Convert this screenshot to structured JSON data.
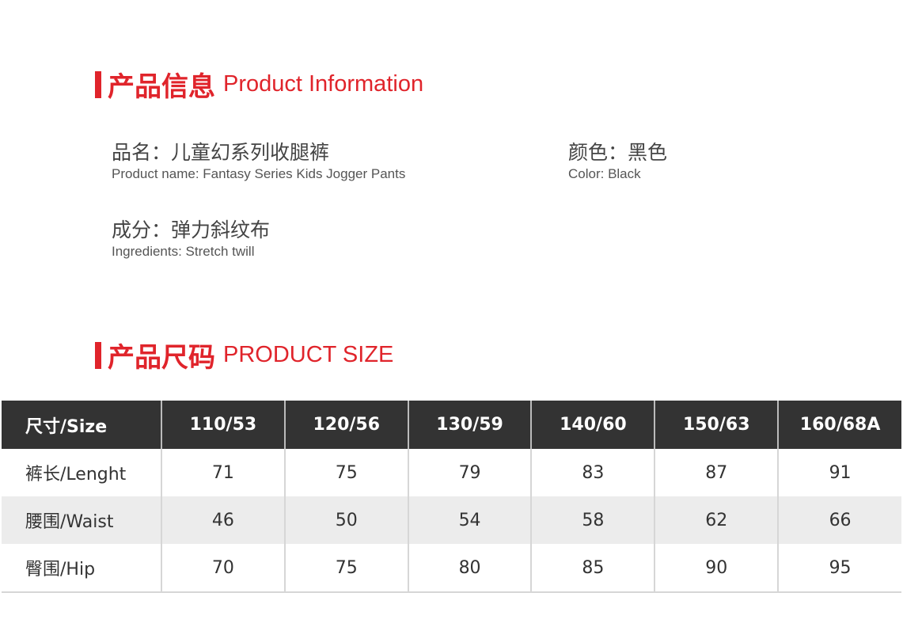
{
  "info_section": {
    "title_zh": "产品信息",
    "title_en": "Product Information"
  },
  "fields": [
    {
      "zh": "品名：儿童幻系列收腿裤",
      "en": "Product name: Fantasy Series Kids Jogger Pants"
    },
    {
      "zh": "颜色：黑色",
      "en": "Color: Black"
    },
    {
      "zh": "成分：弹力斜纹布",
      "en": "Ingredients: Stretch twill"
    }
  ],
  "size_section": {
    "title_zh": "产品尺码",
    "title_en": "PRODUCT SIZE"
  },
  "size_table": {
    "headers": [
      "尺寸/Size",
      "110/53",
      "120/56",
      "130/59",
      "140/60",
      "150/63",
      "160/68A"
    ],
    "rows": [
      [
        "裤长/Lenght",
        "71",
        "75",
        "79",
        "83",
        "87",
        "91"
      ],
      [
        "腰围/Waist",
        "46",
        "50",
        "54",
        "58",
        "62",
        "66"
      ],
      [
        "臀围/Hip",
        "70",
        "75",
        "80",
        "85",
        "90",
        "95"
      ]
    ]
  },
  "colors": {
    "accent": "#e0242b",
    "header_bg": "#333333",
    "stripe": "#ececec"
  }
}
